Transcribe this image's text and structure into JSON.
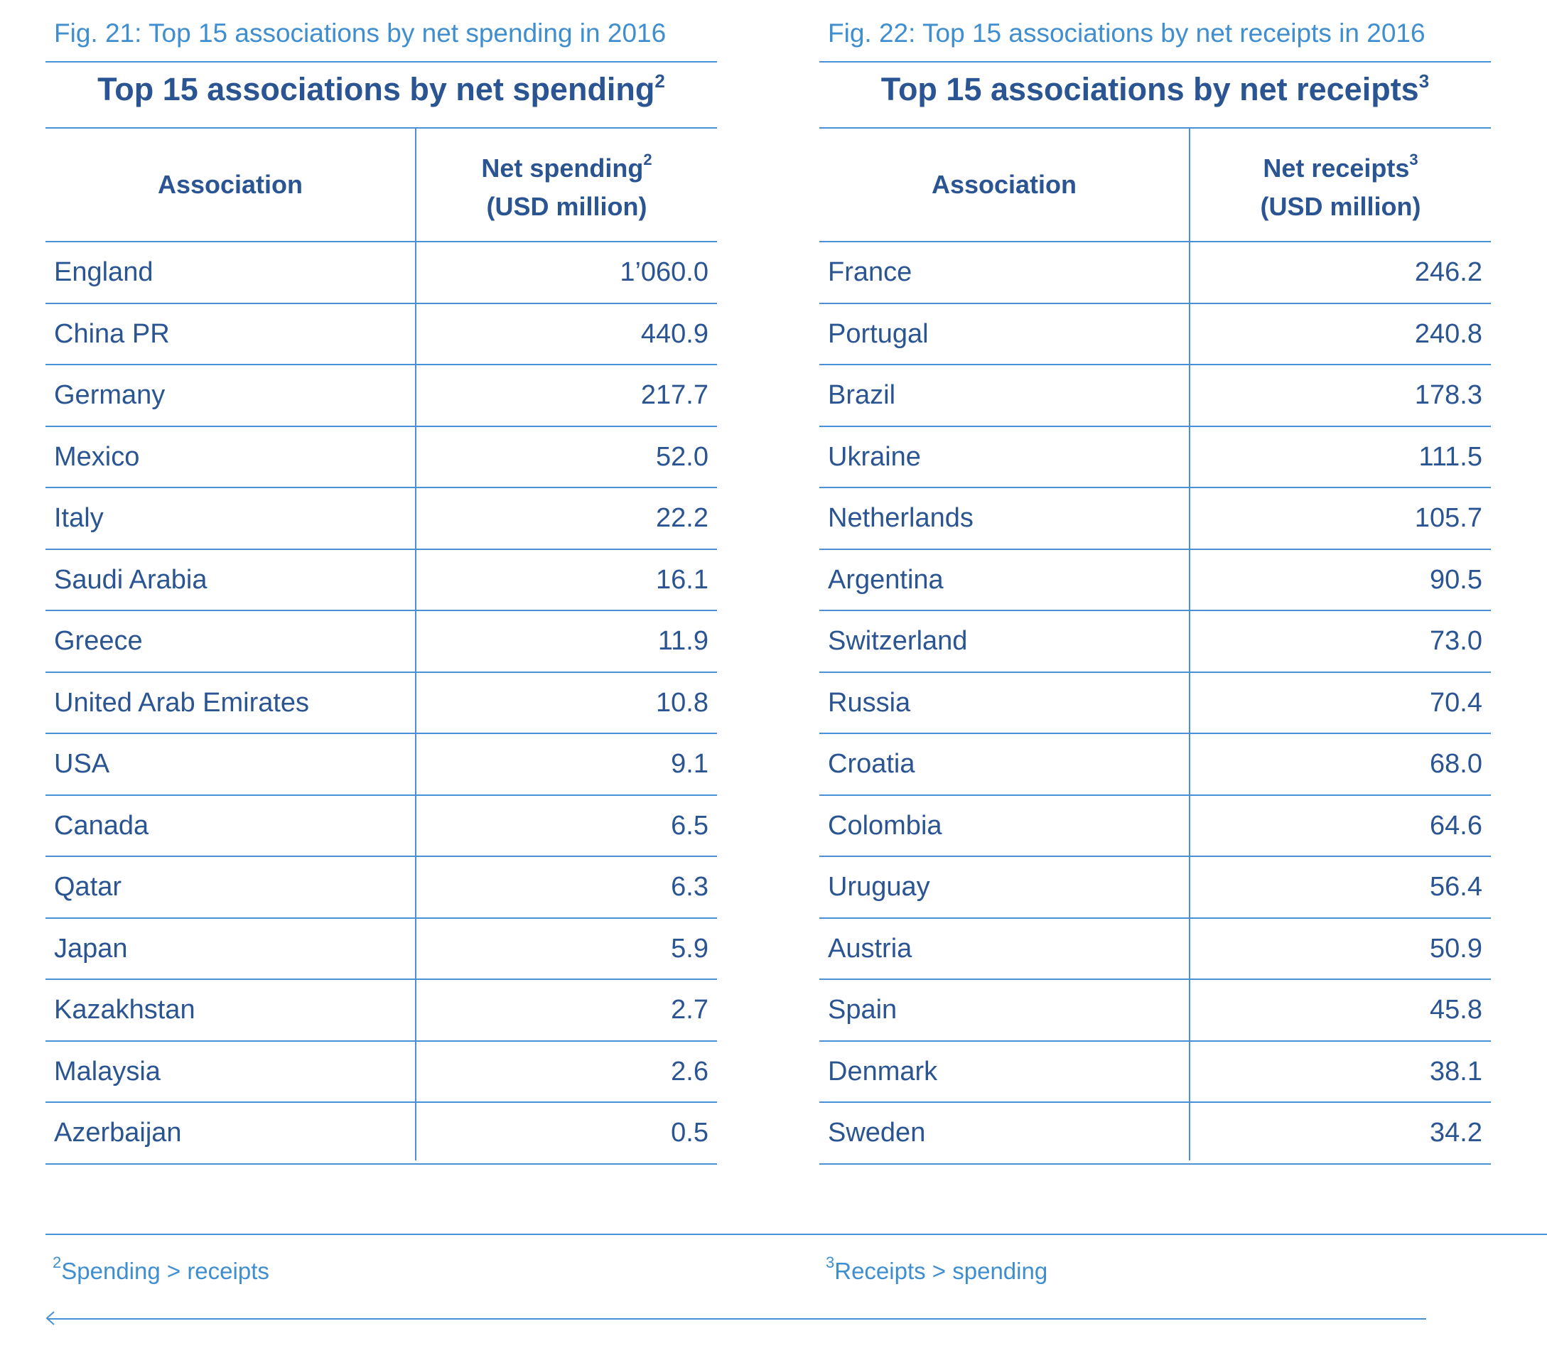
{
  "left_table": {
    "caption": "Fig. 21: Top 15 associations by net spending in 2016",
    "title": "Top 15 associations by net spending",
    "title_sup": "2",
    "col_association": "Association",
    "col_value_line1": "Net spending",
    "col_value_sup": "2",
    "col_value_line2": "(USD million)",
    "rows": [
      {
        "name": "England",
        "value": "1’060.0"
      },
      {
        "name": "China PR",
        "value": "440.9"
      },
      {
        "name": "Germany",
        "value": "217.7"
      },
      {
        "name": "Mexico",
        "value": "52.0"
      },
      {
        "name": "Italy",
        "value": "22.2"
      },
      {
        "name": "Saudi Arabia",
        "value": "16.1"
      },
      {
        "name": "Greece",
        "value": "11.9"
      },
      {
        "name": "United Arab Emirates",
        "value": "10.8"
      },
      {
        "name": "USA",
        "value": "9.1"
      },
      {
        "name": "Canada",
        "value": "6.5"
      },
      {
        "name": "Qatar",
        "value": "6.3"
      },
      {
        "name": "Japan",
        "value": "5.9"
      },
      {
        "name": "Kazakhstan",
        "value": "2.7"
      },
      {
        "name": "Malaysia",
        "value": "2.6"
      },
      {
        "name": "Azerbaijan",
        "value": "0.5"
      }
    ]
  },
  "right_table": {
    "caption": "Fig. 22: Top 15 associations by net receipts in 2016",
    "title": "Top 15 associations by net receipts",
    "title_sup": "3",
    "col_association": "Association",
    "col_value_line1": "Net receipts",
    "col_value_sup": "3",
    "col_value_line2": "(USD million)",
    "rows": [
      {
        "name": "France",
        "value": "246.2"
      },
      {
        "name": "Portugal",
        "value": "240.8"
      },
      {
        "name": "Brazil",
        "value": "178.3"
      },
      {
        "name": "Ukraine",
        "value": "111.5"
      },
      {
        "name": "Netherlands",
        "value": "105.7"
      },
      {
        "name": "Argentina",
        "value": "90.5"
      },
      {
        "name": "Switzerland",
        "value": "73.0"
      },
      {
        "name": "Russia",
        "value": "70.4"
      },
      {
        "name": "Croatia",
        "value": "68.0"
      },
      {
        "name": "Colombia",
        "value": "64.6"
      },
      {
        "name": "Uruguay",
        "value": "56.4"
      },
      {
        "name": "Austria",
        "value": "50.9"
      },
      {
        "name": "Spain",
        "value": "45.8"
      },
      {
        "name": "Denmark",
        "value": "38.1"
      },
      {
        "name": "Sweden",
        "value": "34.2"
      }
    ]
  },
  "footnotes": {
    "left_sup": "2",
    "left_text": "Spending > receipts",
    "right_sup": "3",
    "right_text": "Receipts > spending"
  },
  "colors": {
    "heading": "#2a5592",
    "caption": "#3f8ed0",
    "rule": "#4a90d6"
  },
  "icons": {
    "back": "back-arrow-icon"
  }
}
